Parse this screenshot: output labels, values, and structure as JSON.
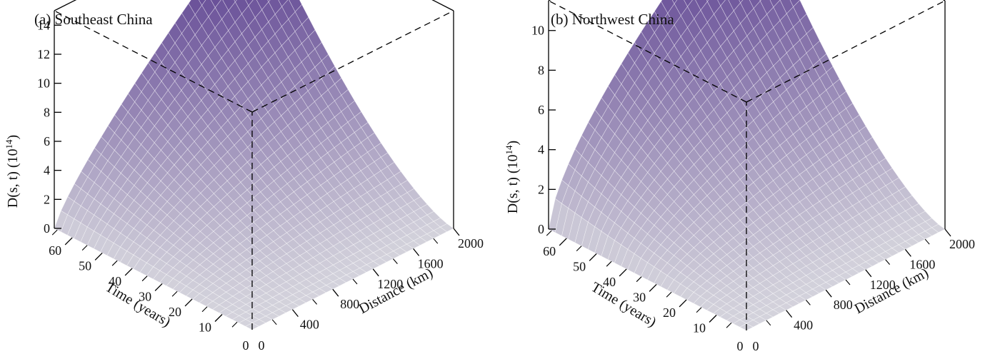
{
  "chart_data": [
    {
      "type": "surface3d",
      "title": "(a) Southeast China",
      "zlabel_main": "D(s, t) (10",
      "zlabel_exp": "14",
      "zlabel_tail": ")",
      "xlabel": "Time (years)",
      "ylabel": "Distance (km)",
      "x_ticks": [
        "0",
        "10",
        "20",
        "30",
        "40",
        "50",
        "60"
      ],
      "y_ticks": [
        "0",
        "400",
        "800",
        "1200",
        "1600",
        "2000"
      ],
      "z_ticks": [
        "0",
        "2",
        "4",
        "6",
        "8",
        "10",
        "12",
        "14"
      ],
      "xlim": [
        0,
        66
      ],
      "ylim": [
        0,
        2000
      ],
      "zlim": [
        0,
        15
      ],
      "z_max": 15,
      "shape": {
        "time_exponent": 1.5,
        "distance_exponent": 0.8
      },
      "colormap": [
        "#d4d3dc",
        "#4a2a85"
      ]
    },
    {
      "type": "surface3d",
      "title": "(b) Northwest China",
      "zlabel_main": "D(s, t) (10",
      "zlabel_exp": "14",
      "zlabel_tail": ")",
      "xlabel": "Time (years)",
      "ylabel": "Distance (km)",
      "x_ticks": [
        "0",
        "10",
        "20",
        "30",
        "40",
        "50",
        "60"
      ],
      "y_ticks": [
        "0",
        "400",
        "800",
        "1200",
        "1600",
        "2000"
      ],
      "z_ticks": [
        "0",
        "2",
        "4",
        "6",
        "8",
        "10"
      ],
      "xlim": [
        0,
        66
      ],
      "ylim": [
        0,
        2000
      ],
      "zlim": [
        0,
        11.5
      ],
      "z_max": 12.4,
      "shape": {
        "time_exponent": 1.5,
        "distance_exponent": 0.65
      },
      "colormap": [
        "#d4d3dc",
        "#4a2a85"
      ]
    }
  ]
}
